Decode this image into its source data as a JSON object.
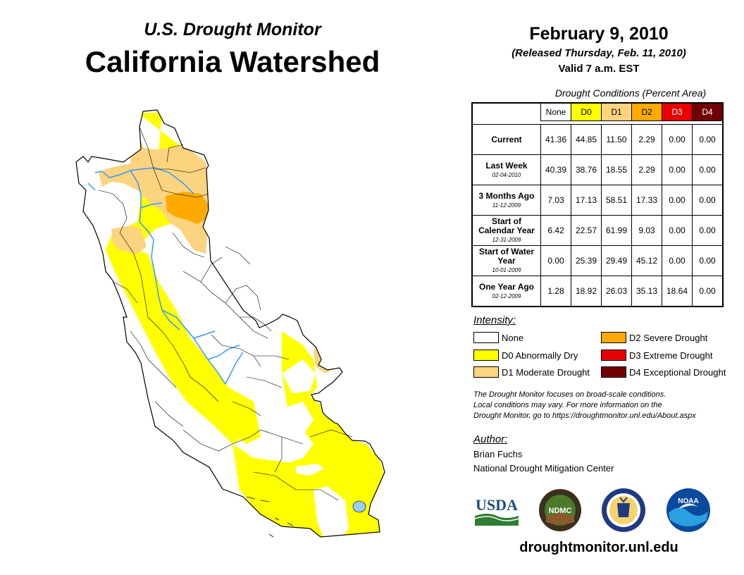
{
  "header": {
    "supertitle": "U.S. Drought Monitor",
    "title": "California Watershed",
    "date": "February 9, 2010",
    "released": "(Released Thursday, Feb. 11, 2010)",
    "valid": "Valid 7 a.m. EST"
  },
  "table": {
    "caption": "Drought Conditions (Percent Area)",
    "columns": [
      "None",
      "D0",
      "D1",
      "D2",
      "D3",
      "D4"
    ],
    "column_colors": [
      "#ffffff",
      "#ffff00",
      "#fcd37f",
      "#ffaa00",
      "#e60000",
      "#730000"
    ],
    "column_text_colors": [
      "#000000",
      "#000000",
      "#000000",
      "#000000",
      "#ffffff",
      "#ffffff"
    ],
    "rows": [
      {
        "label": "Current",
        "date": "",
        "values": [
          "41.36",
          "44.85",
          "11.50",
          "2.29",
          "0.00",
          "0.00"
        ]
      },
      {
        "label": "Last Week",
        "date": "02-04-2010",
        "values": [
          "40.39",
          "38.76",
          "18.55",
          "2.29",
          "0.00",
          "0.00"
        ]
      },
      {
        "label": "3 Months Ago",
        "date": "11-12-2009",
        "values": [
          "7.03",
          "17.13",
          "58.51",
          "17.33",
          "0.00",
          "0.00"
        ]
      },
      {
        "label": "Start of Calendar Year",
        "date": "12-31-2009",
        "values": [
          "6.42",
          "22.57",
          "61.99",
          "9.03",
          "0.00",
          "0.00"
        ]
      },
      {
        "label": "Start of Water Year",
        "date": "10-01-2009",
        "values": [
          "0.00",
          "25.39",
          "29.49",
          "45.12",
          "0.00",
          "0.00"
        ]
      },
      {
        "label": "One Year Ago",
        "date": "02-12-2009",
        "values": [
          "1.28",
          "18.92",
          "26.03",
          "35.13",
          "18.64",
          "0.00"
        ]
      }
    ]
  },
  "legend": {
    "title": "Intensity:",
    "items": [
      {
        "label": "None",
        "color": "#ffffff"
      },
      {
        "label": "D0 Abnormally Dry",
        "color": "#ffff00"
      },
      {
        "label": "D1 Moderate Drought",
        "color": "#fcd37f"
      },
      {
        "label": "D2 Severe Drought",
        "color": "#ffaa00"
      },
      {
        "label": "D3 Extreme Drought",
        "color": "#e60000"
      },
      {
        "label": "D4 Exceptional Drought",
        "color": "#730000"
      }
    ]
  },
  "note": {
    "line1": "The Drought Monitor focuses on broad-scale conditions.",
    "line2": "Local conditions may vary. For more information on the",
    "line3": "Drought Monitor, go to https://droughtmonitor.unl.edu/About.aspx"
  },
  "author": {
    "title": "Author:",
    "name": "Brian Fuchs",
    "org": "National Drought Mitigation Center"
  },
  "logos": {
    "usda": "USDA",
    "ndmc": "NDMC",
    "noaa": "NOAA"
  },
  "url": "droughtmonitor.unl.edu",
  "map": {
    "colors": {
      "none": "#ffffff",
      "d0": "#ffff00",
      "d1": "#fcd37f",
      "d2": "#ffaa00",
      "river": "#3399ff"
    }
  }
}
